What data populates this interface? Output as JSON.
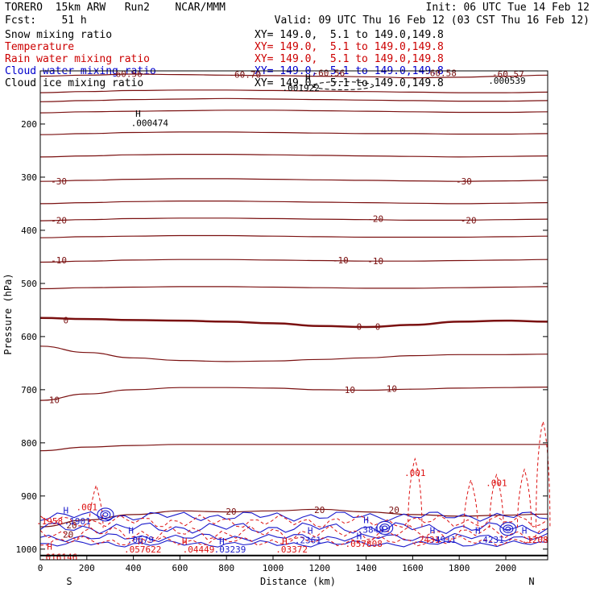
{
  "header": {
    "model": "TORERO  15km ARW   Run2    NCAR/MMM",
    "init": "Init: 06 UTC Tue 14 Feb 12",
    "fcst": "Fcst:    51 h",
    "valid": "Valid: 09 UTC Thu 16 Feb 12 (03 CST Thu 16 Feb 12)"
  },
  "legend": [
    {
      "name": "Snow mixing ratio",
      "color": "#000000",
      "xy": "XY= 149.0,  5.1 to 149.0,149.8"
    },
    {
      "name": "Temperature",
      "color": "#cc0000",
      "xy": "XY= 149.0,  5.1 to 149.0,149.8"
    },
    {
      "name": "Rain water mixing ratio",
      "color": "#cc0000",
      "xy": "XY= 149.0,  5.1 to 149.0,149.8"
    },
    {
      "name": "Cloud water mixing ratio",
      "color": "#0000cc",
      "xy": "XY= 149.0,  5.1 to 149.0,149.8"
    },
    {
      "name": "Cloud ice mixing ratio",
      "color": "#000000",
      "xy": "XY= 149.0,  5.1 to 149.0,149.8"
    }
  ],
  "colors": {
    "temperature": "#7a1010",
    "rain": "#dd1111",
    "cloud_water": "#1a1acc",
    "axis": "#000000"
  },
  "chart_data": {
    "type": "line",
    "title": "Vertical cross-section",
    "xlabel": "Distance (km)",
    "ylabel": "Pressure (hPa)",
    "xlim": [
      0,
      2180
    ],
    "ylim": [
      100,
      1020
    ],
    "x_ticks": [
      0,
      200,
      400,
      600,
      800,
      1000,
      1200,
      1400,
      1600,
      1800,
      2000
    ],
    "y_ticks": [
      200,
      300,
      400,
      500,
      600,
      700,
      800,
      900,
      1000
    ],
    "x_end_labels": {
      "left": "S",
      "right": "N"
    },
    "temperature_series": [
      {
        "level": -60,
        "p": [
          110,
          108,
          106,
          107,
          108,
          109,
          110,
          111,
          113,
          112,
          110,
          108
        ],
        "x": [
          0,
          200,
          400,
          600,
          800,
          1000,
          1200,
          1400,
          1600,
          1800,
          2000,
          2180
        ]
      },
      {
        "level": -55,
        "p": [
          141,
          139,
          137,
          136,
          136,
          137,
          138,
          139,
          140,
          141,
          141,
          140
        ],
        "x": [
          0,
          200,
          400,
          600,
          800,
          1000,
          1200,
          1400,
          1600,
          1800,
          2000,
          2180
        ]
      },
      {
        "level": -50,
        "p": [
          158,
          156,
          154,
          153,
          152,
          153,
          154,
          155,
          156,
          157,
          157,
          156
        ],
        "x": [
          0,
          200,
          400,
          600,
          800,
          1000,
          1200,
          1400,
          1600,
          1800,
          2000,
          2180
        ]
      },
      {
        "level": -45,
        "p": [
          179,
          177,
          176,
          175,
          174,
          174,
          175,
          176,
          177,
          178,
          178,
          177
        ],
        "x": [
          0,
          200,
          400,
          600,
          800,
          1000,
          1200,
          1400,
          1600,
          1800,
          2000,
          2180
        ]
      },
      {
        "level": -40,
        "p": [
          220,
          218,
          216,
          215,
          215,
          216,
          217,
          218,
          218,
          219,
          219,
          218
        ],
        "x": [
          0,
          200,
          400,
          600,
          800,
          1000,
          1200,
          1400,
          1600,
          1800,
          2000,
          2180
        ]
      },
      {
        "level": -35,
        "p": [
          262,
          260,
          258,
          257,
          257,
          258,
          259,
          260,
          261,
          262,
          261,
          260
        ],
        "x": [
          0,
          200,
          400,
          600,
          800,
          1000,
          1200,
          1400,
          1600,
          1800,
          2000,
          2180
        ]
      },
      {
        "level": -30,
        "p": [
          308,
          306,
          304,
          303,
          303,
          304,
          305,
          306,
          307,
          308,
          307,
          306
        ],
        "x": [
          0,
          200,
          400,
          600,
          800,
          1000,
          1200,
          1400,
          1600,
          1800,
          2000,
          2180
        ]
      },
      {
        "level": -25,
        "p": [
          350,
          348,
          346,
          345,
          345,
          346,
          347,
          348,
          349,
          350,
          349,
          348
        ],
        "x": [
          0,
          200,
          400,
          600,
          800,
          1000,
          1200,
          1400,
          1600,
          1800,
          2000,
          2180
        ]
      },
      {
        "level": -20,
        "p": [
          382,
          380,
          378,
          377,
          377,
          378,
          379,
          380,
          381,
          381,
          380,
          379
        ],
        "x": [
          0,
          200,
          400,
          600,
          800,
          1000,
          1200,
          1400,
          1600,
          1800,
          2000,
          2180
        ]
      },
      {
        "level": -15,
        "p": [
          414,
          412,
          411,
          410,
          410,
          411,
          412,
          413,
          413,
          413,
          412,
          411
        ],
        "x": [
          0,
          200,
          400,
          600,
          800,
          1000,
          1200,
          1400,
          1600,
          1800,
          2000,
          2180
        ]
      },
      {
        "level": -10,
        "p": [
          460,
          458,
          456,
          455,
          455,
          456,
          457,
          458,
          458,
          457,
          456,
          455
        ],
        "x": [
          0,
          200,
          400,
          600,
          800,
          1000,
          1200,
          1400,
          1600,
          1800,
          2000,
          2180
        ]
      },
      {
        "level": -5,
        "p": [
          510,
          508,
          507,
          506,
          506,
          507,
          508,
          509,
          509,
          508,
          507,
          506
        ],
        "x": [
          0,
          200,
          400,
          600,
          800,
          1000,
          1200,
          1400,
          1600,
          1800,
          2000,
          2180
        ]
      },
      {
        "level": 0,
        "p": [
          565,
          567,
          569,
          570,
          572,
          575,
          580,
          582,
          578,
          572,
          570,
          572
        ],
        "x": [
          0,
          200,
          400,
          600,
          800,
          1000,
          1200,
          1400,
          1600,
          1800,
          2000,
          2180
        ]
      },
      {
        "level": 5,
        "p": [
          618,
          630,
          640,
          645,
          647,
          646,
          643,
          640,
          636,
          634,
          634,
          633
        ],
        "x": [
          0,
          200,
          400,
          600,
          800,
          1000,
          1200,
          1400,
          1600,
          1800,
          2000,
          2180
        ]
      },
      {
        "level": 10,
        "p": [
          720,
          708,
          700,
          696,
          696,
          697,
          700,
          701,
          699,
          697,
          696,
          695
        ],
        "x": [
          0,
          200,
          400,
          600,
          800,
          1000,
          1200,
          1400,
          1600,
          1800,
          2000,
          2180
        ]
      },
      {
        "level": 15,
        "p": [
          815,
          808,
          805,
          803,
          803,
          803,
          803,
          803,
          803,
          803,
          803,
          803
        ],
        "x": [
          0,
          200,
          400,
          600,
          800,
          1000,
          1200,
          1400,
          1600,
          1800,
          2000,
          2180
        ]
      },
      {
        "level": 20,
        "p": [
          958,
          945,
          935,
          928,
          930,
          928,
          925,
          930,
          935,
          938,
          936,
          934
        ],
        "x": [
          0,
          200,
          400,
          600,
          800,
          1000,
          1200,
          1400,
          1600,
          1800,
          2000,
          2180
        ]
      }
    ],
    "temperature_labels": [
      {
        "text": "-60.56",
        "x": 370,
        "p": 105
      },
      {
        "text": "-60.70",
        "x": 880,
        "p": 107
      },
      {
        "text": "-60.57",
        "x": 2010,
        "p": 106
      },
      {
        "text": "-30",
        "x": 80,
        "p": 308
      },
      {
        "text": "-30",
        "x": 1820,
        "p": 308
      },
      {
        "text": "-20",
        "x": 80,
        "p": 381
      },
      {
        "text": "-20",
        "x": 1440,
        "p": 378
      },
      {
        "text": "-20",
        "x": 1840,
        "p": 381
      },
      {
        "text": "-10",
        "x": 80,
        "p": 456
      },
      {
        "text": "-10",
        "x": 1290,
        "p": 456
      },
      {
        "text": "-10",
        "x": 1440,
        "p": 458
      },
      {
        "text": "0",
        "x": 110,
        "p": 569
      },
      {
        "text": "0",
        "x": 1370,
        "p": 581
      },
      {
        "text": "0",
        "x": 1450,
        "p": 581
      },
      {
        "text": "10",
        "x": 60,
        "p": 719
      },
      {
        "text": "10",
        "x": 1330,
        "p": 700
      },
      {
        "text": "10",
        "x": 1510,
        "p": 698
      },
      {
        "text": "20",
        "x": 135,
        "p": 955
      },
      {
        "text": "20",
        "x": 820,
        "p": 929
      },
      {
        "text": "20",
        "x": 1200,
        "p": 926
      },
      {
        "text": "20",
        "x": 1520,
        "p": 926
      }
    ],
    "annotations": [
      {
        "text": "H",
        "x": 420,
        "p": 180,
        "color": "#000000"
      },
      {
        "text": ".000474",
        "x": 470,
        "p": 198,
        "color": "#000000"
      },
      {
        "text": ".001922",
        "x": 1120,
        "p": 132,
        "color": "#000000"
      },
      {
        "text": "H",
        "x": 1150,
        "p": 112,
        "color": "#000000"
      },
      {
        "text": ".000539",
        "x": 2005,
        "p": 118,
        "color": "#000000"
      },
      {
        "text": "-60.56",
        "x": 1240,
        "p": 104,
        "color": "#7a1010"
      },
      {
        "text": "-60.58",
        "x": 1720,
        "p": 104,
        "color": "#7a1010"
      },
      {
        "text": ".001",
        "x": 1610,
        "p": 856,
        "color": "#dd1111"
      },
      {
        "text": ".001",
        "x": 1960,
        "p": 875,
        "color": "#dd1111"
      },
      {
        "text": "H",
        "x": 110,
        "p": 927,
        "color": "#1a1acc"
      },
      {
        "text": ".001",
        "x": 200,
        "p": 921,
        "color": "#dd1111"
      },
      {
        "text": ".1958",
        "x": 40,
        "p": 947,
        "color": "#dd1111"
      },
      {
        "text": ".1901",
        "x": 160,
        "p": 947,
        "color": "#1a1acc"
      },
      {
        "text": "20",
        "x": 120,
        "p": 972,
        "color": "#7a1010"
      },
      {
        "text": "H",
        "x": 390,
        "p": 965,
        "color": "#1a1acc"
      },
      {
        "text": "H",
        "x": 430,
        "p": 985,
        "color": "#dd1111"
      },
      {
        "text": ".0679",
        "x": 430,
        "p": 982,
        "color": "#1a1acc"
      },
      {
        "text": ".057622",
        "x": 440,
        "p": 1000,
        "color": "#dd1111"
      },
      {
        "text": "H",
        "x": 620,
        "p": 985,
        "color": "#dd1111"
      },
      {
        "text": "H",
        "x": 780,
        "p": 985,
        "color": "#1a1acc"
      },
      {
        "text": ".04449",
        "x": 680,
        "p": 1000,
        "color": "#dd1111"
      },
      {
        "text": ".03239",
        "x": 815,
        "p": 1000,
        "color": "#1a1acc"
      },
      {
        "text": "H",
        "x": 1050,
        "p": 985,
        "color": "#dd1111"
      },
      {
        "text": ".03372",
        "x": 1080,
        "p": 1000,
        "color": "#dd1111"
      },
      {
        "text": "H",
        "x": 1160,
        "p": 965,
        "color": "#1a1acc"
      },
      {
        "text": ".2361",
        "x": 1150,
        "p": 983,
        "color": "#1a1acc"
      },
      {
        "text": "H",
        "x": 1400,
        "p": 945,
        "color": "#1a1acc"
      },
      {
        "text": ".3843",
        "x": 1420,
        "p": 963,
        "color": "#1a1acc"
      },
      {
        "text": "H",
        "x": 1370,
        "p": 975,
        "color": "#1a1acc"
      },
      {
        "text": ".057808",
        "x": 1390,
        "p": 990,
        "color": "#dd1111"
      },
      {
        "text": "H",
        "x": 1685,
        "p": 965,
        "color": "#1a1acc"
      },
      {
        "text": ".2431",
        "x": 1660,
        "p": 982,
        "color": "#dd1111"
      },
      {
        "text": ".4911",
        "x": 1730,
        "p": 982,
        "color": "#1a1acc"
      },
      {
        "text": "H",
        "x": 1880,
        "p": 965,
        "color": "#1a1acc"
      },
      {
        "text": ".4231",
        "x": 1935,
        "p": 982,
        "color": "#1a1acc"
      },
      {
        "text": "H",
        "x": 2080,
        "p": 965,
        "color": "#1a1acc"
      },
      {
        "text": ".1208",
        "x": 2125,
        "p": 982,
        "color": "#dd1111"
      },
      {
        "text": "H",
        "x": 40,
        "p": 995,
        "color": "#dd1111"
      },
      {
        "text": ".016146",
        "x": 80,
        "p": 1015,
        "color": "#dd1111"
      }
    ]
  }
}
